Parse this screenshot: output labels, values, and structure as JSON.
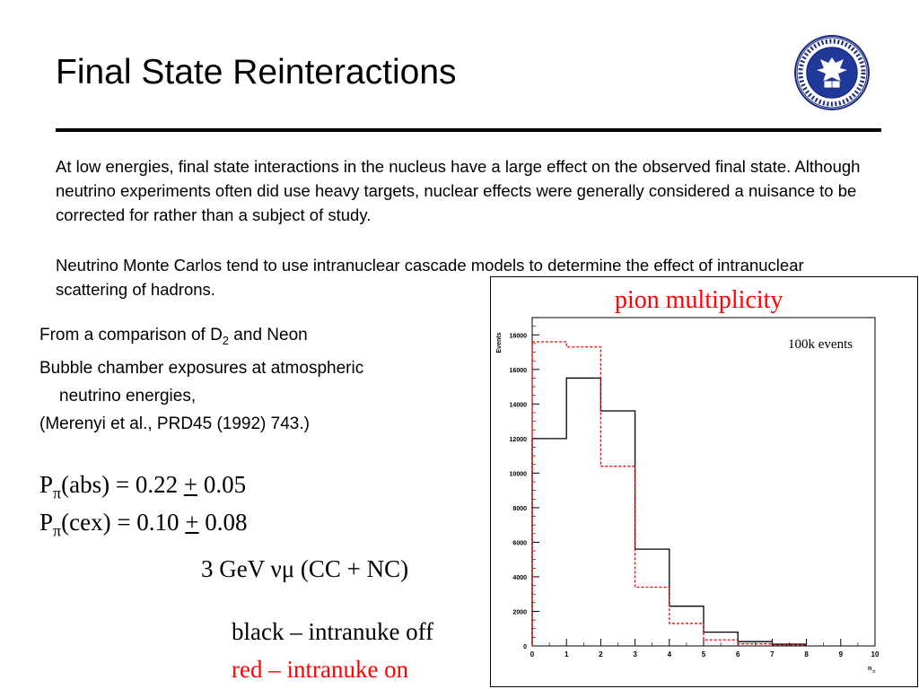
{
  "slide": {
    "title": "Final State Reinteractions",
    "para1": "At low energies, final state interactions in the nucleus have a large effect on the observed final state.  Although neutrino experiments often did use heavy targets, nuclear effects were generally considered a nuisance to be corrected for rather than a subject of study.",
    "para2": "Neutrino Monte Carlos tend to use intranuclear cascade models to determine the effect of intranuclear scattering of hadrons.",
    "comparison": {
      "line1_pre": "From a comparison of D",
      "line1_sub": "2",
      "line1_post": " and Neon",
      "line2": "Bubble chamber exposures at atmospheric",
      "line3": "neutrino energies,",
      "line4": "(Merenyi et al., PRD45 (1992) 743.)"
    },
    "pabs": {
      "p": "P",
      "sub": "π",
      "label": "(abs) = 0.22 ",
      "pm": "+",
      "err": " 0.05"
    },
    "pcex": {
      "p": "P",
      "sub": "π",
      "label": "(cex) = 0.10 ",
      "pm": "+",
      "err": " 0.08"
    },
    "energy": "3 GeV νμ (CC + NC)",
    "legend_black": "black – intranuke off",
    "legend_red": "red – intranuke on",
    "logo_text": "SIGILLUM UNIVERSITATIS TUFTENSIS PAX ET LUX 1852"
  },
  "chart_data": {
    "type": "histogram",
    "title": "pion multiplicity",
    "annotation": "100k events",
    "ylabel": "Events",
    "xlabel": "n",
    "xlabel_sub": "π",
    "xlim": [
      0,
      10
    ],
    "ylim": [
      0,
      19000
    ],
    "xticks": [
      0,
      1,
      2,
      3,
      4,
      5,
      6,
      7,
      8,
      9,
      10
    ],
    "yticks": [
      0,
      2000,
      4000,
      6000,
      8000,
      10000,
      12000,
      14000,
      16000,
      18000
    ],
    "bin_edges": [
      0,
      1,
      2,
      3,
      4,
      5,
      6,
      7,
      8
    ],
    "series": [
      {
        "name": "intranuke off",
        "color": "#000000",
        "style": "solid",
        "values": [
          12000,
          15500,
          13600,
          5600,
          2300,
          800,
          250,
          100
        ]
      },
      {
        "name": "intranuke on",
        "color": "#ff0000",
        "style": "dashed",
        "values": [
          17600,
          17300,
          10400,
          3400,
          1300,
          350,
          120,
          50
        ]
      }
    ]
  }
}
